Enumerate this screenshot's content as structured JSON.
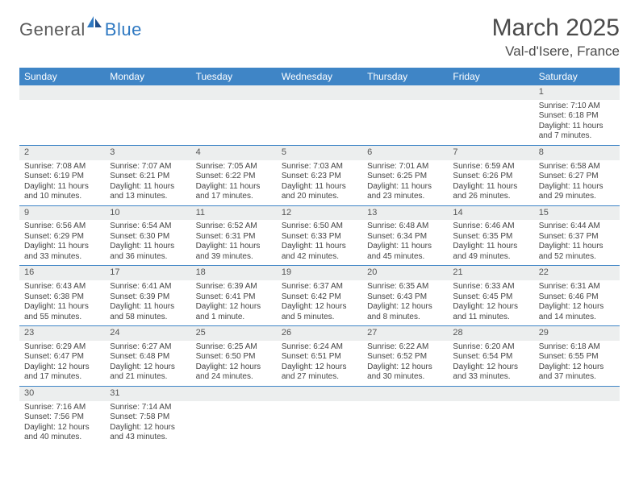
{
  "logo": {
    "general": "General",
    "blue": "Blue"
  },
  "title": "March 2025",
  "location": "Val-d'Isere, France",
  "colors": {
    "header_bg": "#3f85c6",
    "header_text": "#ffffff",
    "num_bg": "#eceeee",
    "border": "#3f85c6",
    "logo_gray": "#5a5a5a",
    "logo_blue": "#2f79c2"
  },
  "day_headers": [
    "Sunday",
    "Monday",
    "Tuesday",
    "Wednesday",
    "Thursday",
    "Friday",
    "Saturday"
  ],
  "weeks": [
    [
      null,
      null,
      null,
      null,
      null,
      null,
      {
        "n": "1",
        "sr": "Sunrise: 7:10 AM",
        "ss": "Sunset: 6:18 PM",
        "dl": "Daylight: 11 hours and 7 minutes."
      }
    ],
    [
      {
        "n": "2",
        "sr": "Sunrise: 7:08 AM",
        "ss": "Sunset: 6:19 PM",
        "dl": "Daylight: 11 hours and 10 minutes."
      },
      {
        "n": "3",
        "sr": "Sunrise: 7:07 AM",
        "ss": "Sunset: 6:21 PM",
        "dl": "Daylight: 11 hours and 13 minutes."
      },
      {
        "n": "4",
        "sr": "Sunrise: 7:05 AM",
        "ss": "Sunset: 6:22 PM",
        "dl": "Daylight: 11 hours and 17 minutes."
      },
      {
        "n": "5",
        "sr": "Sunrise: 7:03 AM",
        "ss": "Sunset: 6:23 PM",
        "dl": "Daylight: 11 hours and 20 minutes."
      },
      {
        "n": "6",
        "sr": "Sunrise: 7:01 AM",
        "ss": "Sunset: 6:25 PM",
        "dl": "Daylight: 11 hours and 23 minutes."
      },
      {
        "n": "7",
        "sr": "Sunrise: 6:59 AM",
        "ss": "Sunset: 6:26 PM",
        "dl": "Daylight: 11 hours and 26 minutes."
      },
      {
        "n": "8",
        "sr": "Sunrise: 6:58 AM",
        "ss": "Sunset: 6:27 PM",
        "dl": "Daylight: 11 hours and 29 minutes."
      }
    ],
    [
      {
        "n": "9",
        "sr": "Sunrise: 6:56 AM",
        "ss": "Sunset: 6:29 PM",
        "dl": "Daylight: 11 hours and 33 minutes."
      },
      {
        "n": "10",
        "sr": "Sunrise: 6:54 AM",
        "ss": "Sunset: 6:30 PM",
        "dl": "Daylight: 11 hours and 36 minutes."
      },
      {
        "n": "11",
        "sr": "Sunrise: 6:52 AM",
        "ss": "Sunset: 6:31 PM",
        "dl": "Daylight: 11 hours and 39 minutes."
      },
      {
        "n": "12",
        "sr": "Sunrise: 6:50 AM",
        "ss": "Sunset: 6:33 PM",
        "dl": "Daylight: 11 hours and 42 minutes."
      },
      {
        "n": "13",
        "sr": "Sunrise: 6:48 AM",
        "ss": "Sunset: 6:34 PM",
        "dl": "Daylight: 11 hours and 45 minutes."
      },
      {
        "n": "14",
        "sr": "Sunrise: 6:46 AM",
        "ss": "Sunset: 6:35 PM",
        "dl": "Daylight: 11 hours and 49 minutes."
      },
      {
        "n": "15",
        "sr": "Sunrise: 6:44 AM",
        "ss": "Sunset: 6:37 PM",
        "dl": "Daylight: 11 hours and 52 minutes."
      }
    ],
    [
      {
        "n": "16",
        "sr": "Sunrise: 6:43 AM",
        "ss": "Sunset: 6:38 PM",
        "dl": "Daylight: 11 hours and 55 minutes."
      },
      {
        "n": "17",
        "sr": "Sunrise: 6:41 AM",
        "ss": "Sunset: 6:39 PM",
        "dl": "Daylight: 11 hours and 58 minutes."
      },
      {
        "n": "18",
        "sr": "Sunrise: 6:39 AM",
        "ss": "Sunset: 6:41 PM",
        "dl": "Daylight: 12 hours and 1 minute."
      },
      {
        "n": "19",
        "sr": "Sunrise: 6:37 AM",
        "ss": "Sunset: 6:42 PM",
        "dl": "Daylight: 12 hours and 5 minutes."
      },
      {
        "n": "20",
        "sr": "Sunrise: 6:35 AM",
        "ss": "Sunset: 6:43 PM",
        "dl": "Daylight: 12 hours and 8 minutes."
      },
      {
        "n": "21",
        "sr": "Sunrise: 6:33 AM",
        "ss": "Sunset: 6:45 PM",
        "dl": "Daylight: 12 hours and 11 minutes."
      },
      {
        "n": "22",
        "sr": "Sunrise: 6:31 AM",
        "ss": "Sunset: 6:46 PM",
        "dl": "Daylight: 12 hours and 14 minutes."
      }
    ],
    [
      {
        "n": "23",
        "sr": "Sunrise: 6:29 AM",
        "ss": "Sunset: 6:47 PM",
        "dl": "Daylight: 12 hours and 17 minutes."
      },
      {
        "n": "24",
        "sr": "Sunrise: 6:27 AM",
        "ss": "Sunset: 6:48 PM",
        "dl": "Daylight: 12 hours and 21 minutes."
      },
      {
        "n": "25",
        "sr": "Sunrise: 6:25 AM",
        "ss": "Sunset: 6:50 PM",
        "dl": "Daylight: 12 hours and 24 minutes."
      },
      {
        "n": "26",
        "sr": "Sunrise: 6:24 AM",
        "ss": "Sunset: 6:51 PM",
        "dl": "Daylight: 12 hours and 27 minutes."
      },
      {
        "n": "27",
        "sr": "Sunrise: 6:22 AM",
        "ss": "Sunset: 6:52 PM",
        "dl": "Daylight: 12 hours and 30 minutes."
      },
      {
        "n": "28",
        "sr": "Sunrise: 6:20 AM",
        "ss": "Sunset: 6:54 PM",
        "dl": "Daylight: 12 hours and 33 minutes."
      },
      {
        "n": "29",
        "sr": "Sunrise: 6:18 AM",
        "ss": "Sunset: 6:55 PM",
        "dl": "Daylight: 12 hours and 37 minutes."
      }
    ],
    [
      {
        "n": "30",
        "sr": "Sunrise: 7:16 AM",
        "ss": "Sunset: 7:56 PM",
        "dl": "Daylight: 12 hours and 40 minutes."
      },
      {
        "n": "31",
        "sr": "Sunrise: 7:14 AM",
        "ss": "Sunset: 7:58 PM",
        "dl": "Daylight: 12 hours and 43 minutes."
      },
      null,
      null,
      null,
      null,
      null
    ]
  ]
}
